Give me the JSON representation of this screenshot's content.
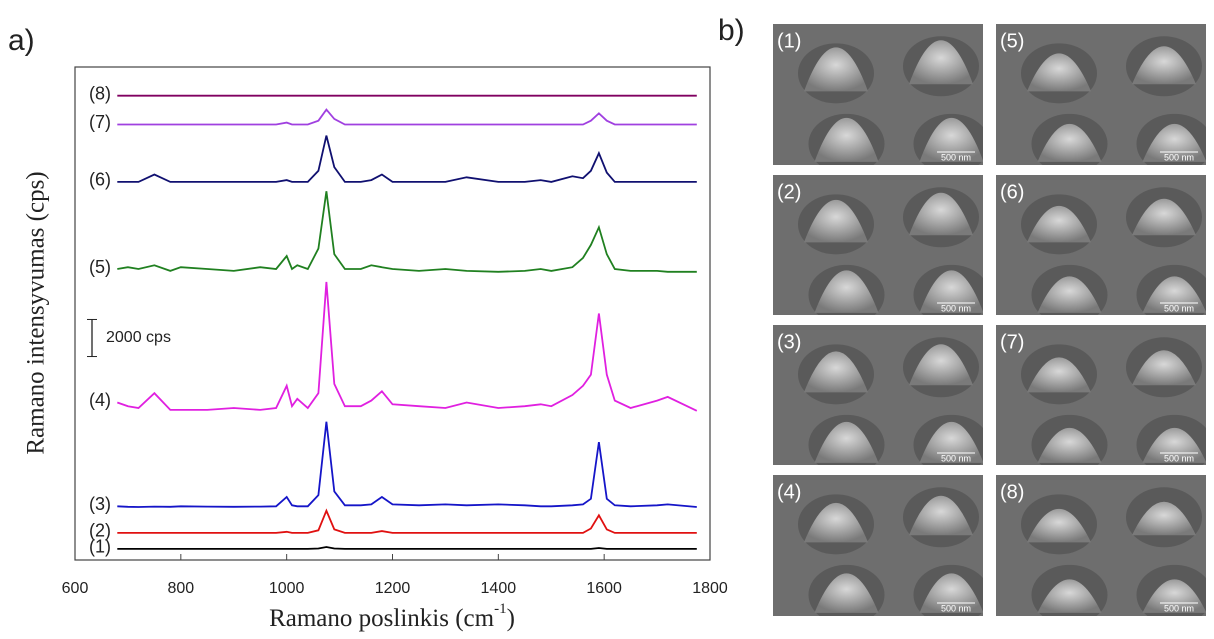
{
  "chart_data": {
    "type": "line",
    "panel_label": "a)",
    "xlabel": "Ramano poslinkis (cm",
    "xlabel_sup": "-1",
    "xlabel_tail": ")",
    "ylabel": "Ramano intensyvumas (cps)",
    "xlim": [
      600,
      1800
    ],
    "xticks": [
      600,
      800,
      1000,
      1200,
      1400,
      1600,
      1800
    ],
    "ylim": [
      0,
      26600
    ],
    "scale_bar": {
      "value": 2000,
      "label": "2000 cps"
    },
    "x": [
      680,
      700,
      720,
      750,
      780,
      800,
      850,
      900,
      950,
      980,
      1000,
      1010,
      1020,
      1040,
      1060,
      1075,
      1090,
      1110,
      1140,
      1160,
      1180,
      1200,
      1250,
      1300,
      1340,
      1400,
      1450,
      1480,
      1500,
      1540,
      1560,
      1575,
      1590,
      1605,
      1620,
      1650,
      1700,
      1720,
      1775
    ],
    "series": [
      {
        "name": "(1)",
        "color": "#000000",
        "values": [
          600,
          600,
          600,
          600,
          600,
          600,
          600,
          600,
          600,
          600,
          600,
          600,
          600,
          600,
          620,
          700,
          620,
          600,
          600,
          600,
          600,
          600,
          600,
          600,
          600,
          600,
          600,
          600,
          600,
          600,
          600,
          600,
          650,
          600,
          600,
          600,
          600,
          600,
          600
        ]
      },
      {
        "name": "(2)",
        "color": "#e01010",
        "values": [
          1460,
          1460,
          1460,
          1460,
          1460,
          1460,
          1460,
          1460,
          1460,
          1460,
          1520,
          1460,
          1460,
          1460,
          1600,
          2660,
          1650,
          1460,
          1460,
          1460,
          1560,
          1460,
          1460,
          1460,
          1460,
          1460,
          1460,
          1460,
          1460,
          1460,
          1460,
          1700,
          2410,
          1650,
          1460,
          1460,
          1460,
          1460,
          1460
        ]
      },
      {
        "name": "(3)",
        "color": "#1515c8",
        "values": [
          2900,
          2870,
          2860,
          2880,
          2870,
          2900,
          2880,
          2870,
          2880,
          2900,
          3400,
          2950,
          2900,
          2900,
          3500,
          7460,
          3700,
          2950,
          2950,
          3000,
          3400,
          3000,
          2950,
          3000,
          2950,
          3000,
          2950,
          2900,
          2900,
          2950,
          3000,
          3300,
          6360,
          3300,
          2950,
          2900,
          2950,
          3000,
          2860
        ]
      },
      {
        "name": "(4)",
        "color": "#e020e0",
        "values": [
          8500,
          8300,
          8200,
          9000,
          8100,
          8100,
          8100,
          8200,
          8100,
          8200,
          9400,
          8300,
          8700,
          8200,
          9000,
          15000,
          9500,
          8300,
          8300,
          8600,
          9100,
          8400,
          8300,
          8200,
          8500,
          8200,
          8300,
          8400,
          8300,
          8900,
          9400,
          10000,
          13300,
          10000,
          8600,
          8200,
          8600,
          8800,
          8050
        ]
      },
      {
        "name": "(5)",
        "color": "#208020",
        "values": [
          15700,
          15800,
          15700,
          15900,
          15600,
          15800,
          15700,
          15600,
          15800,
          15700,
          16400,
          15700,
          15900,
          15700,
          16800,
          19900,
          16500,
          15700,
          15700,
          15900,
          15800,
          15700,
          15600,
          15700,
          15600,
          15550,
          15600,
          15700,
          15600,
          15800,
          16300,
          17000,
          17950,
          16500,
          15700,
          15600,
          15600,
          15550,
          15550
        ]
      },
      {
        "name": "(6)",
        "color": "#101070",
        "values": [
          20400,
          20400,
          20400,
          20800,
          20400,
          20400,
          20400,
          20400,
          20400,
          20400,
          20500,
          20400,
          20400,
          20400,
          21000,
          22900,
          21200,
          20400,
          20400,
          20500,
          20800,
          20400,
          20400,
          20400,
          20650,
          20400,
          20400,
          20500,
          20400,
          20700,
          20600,
          21000,
          21950,
          20900,
          20400,
          20400,
          20400,
          20400,
          20400
        ]
      },
      {
        "name": "(7)",
        "color": "#a040e0",
        "values": [
          23500,
          23500,
          23500,
          23500,
          23500,
          23500,
          23500,
          23500,
          23500,
          23500,
          23600,
          23500,
          23500,
          23500,
          23700,
          24300,
          23800,
          23500,
          23500,
          23500,
          23500,
          23500,
          23500,
          23500,
          23500,
          23500,
          23500,
          23500,
          23500,
          23500,
          23500,
          23700,
          24100,
          23700,
          23500,
          23500,
          23500,
          23500,
          23500
        ]
      },
      {
        "name": "(8)",
        "color": "#800060",
        "values": [
          25050,
          25050,
          25050,
          25050,
          25050,
          25050,
          25050,
          25050,
          25050,
          25050,
          25050,
          25050,
          25050,
          25050,
          25050,
          25050,
          25050,
          25050,
          25050,
          25050,
          25050,
          25050,
          25050,
          25050,
          25050,
          25050,
          25050,
          25050,
          25050,
          25050,
          25050,
          25050,
          25050,
          25050,
          25050,
          25050,
          25050,
          25050,
          25050
        ]
      }
    ]
  },
  "images": {
    "panel_label": "b)",
    "items": [
      {
        "label": "(1)",
        "scale": "500 nm"
      },
      {
        "label": "(2)",
        "scale": "500 nm"
      },
      {
        "label": "(3)",
        "scale": "500 nm"
      },
      {
        "label": "(4)",
        "scale": "500 nm"
      },
      {
        "label": "(5)",
        "scale": "500 nm"
      },
      {
        "label": "(6)",
        "scale": "500 nm"
      },
      {
        "label": "(7)",
        "scale": "500 nm"
      },
      {
        "label": "(8)",
        "scale": "500 nm"
      }
    ]
  }
}
